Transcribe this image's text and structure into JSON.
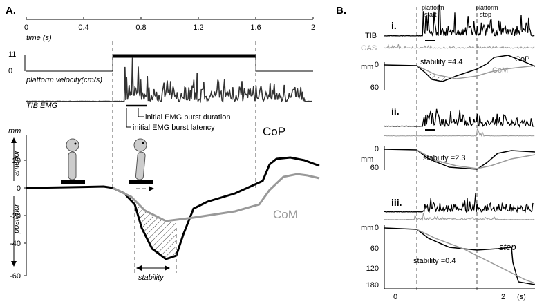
{
  "panel_a": {
    "label": "A.",
    "time_axis": {
      "ticks": [
        "0",
        "0.4",
        "0.8",
        "1.2",
        "1.6",
        "2"
      ],
      "label": "time (s)"
    },
    "velocity": {
      "ticks": [
        "11",
        "0"
      ],
      "label": "platform velocity(cm/s)"
    },
    "emg_label": "TIB EMG",
    "annotations": [
      "initial EMG burst duration",
      "initial EMG burst latency"
    ],
    "displacement": {
      "unit": "mm",
      "ticks": [
        "20",
        "0",
        "-20",
        "-40",
        "-60"
      ],
      "direction_up": "antenor",
      "direction_down": "posterior",
      "cop": "CoP",
      "com": "CoM",
      "stability": "stability"
    }
  },
  "panel_b": {
    "label": "B.",
    "platform_start": [
      "platform",
      "start"
    ],
    "platform_stop": [
      "platform",
      "stop"
    ],
    "trials": [
      {
        "label": "i.",
        "emg": [
          "TIB",
          "GAS"
        ],
        "unit": "mm",
        "ticks": [
          "0",
          "60"
        ],
        "stability": "stability =4.4",
        "cop": "CoP",
        "com": "CoM"
      },
      {
        "label": "ii.",
        "unit": "mm",
        "ticks": [
          "0",
          "60"
        ],
        "stability": "stability =2.3"
      },
      {
        "label": "iii.",
        "unit": "mm",
        "ticks": [
          "0",
          "60",
          "120",
          "180"
        ],
        "stability": "stability =0.4",
        "step": "step"
      }
    ],
    "time_ticks": [
      "0",
      "2"
    ],
    "time_unit": "(s)"
  }
}
